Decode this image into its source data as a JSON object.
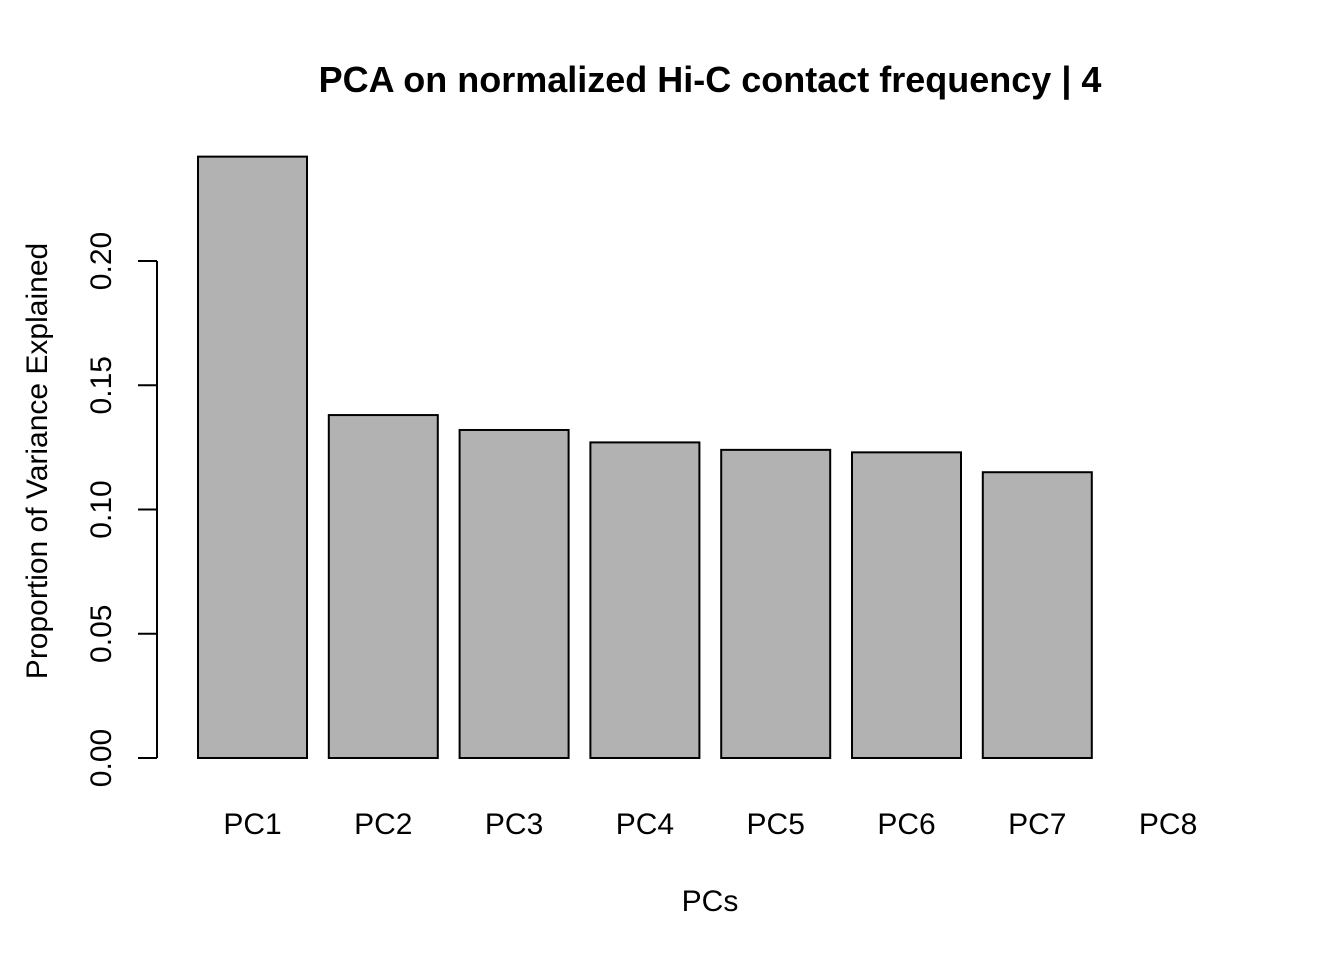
{
  "chart_data": {
    "type": "bar",
    "title": "PCA on normalized Hi-C contact frequency | 4",
    "xlabel": "PCs",
    "ylabel": "Proportion of Variance Explained",
    "categories": [
      "PC1",
      "PC2",
      "PC3",
      "PC4",
      "PC5",
      "PC6",
      "PC7",
      "PC8"
    ],
    "values": [
      0.242,
      0.138,
      0.132,
      0.127,
      0.124,
      0.123,
      0.115,
      0.0
    ],
    "ylim": [
      0,
      0.25
    ],
    "yticks": [
      "0.00",
      "0.05",
      "0.10",
      "0.15",
      "0.20"
    ],
    "bar_color": "#b2b2b2",
    "grid": false,
    "legend": "none"
  }
}
